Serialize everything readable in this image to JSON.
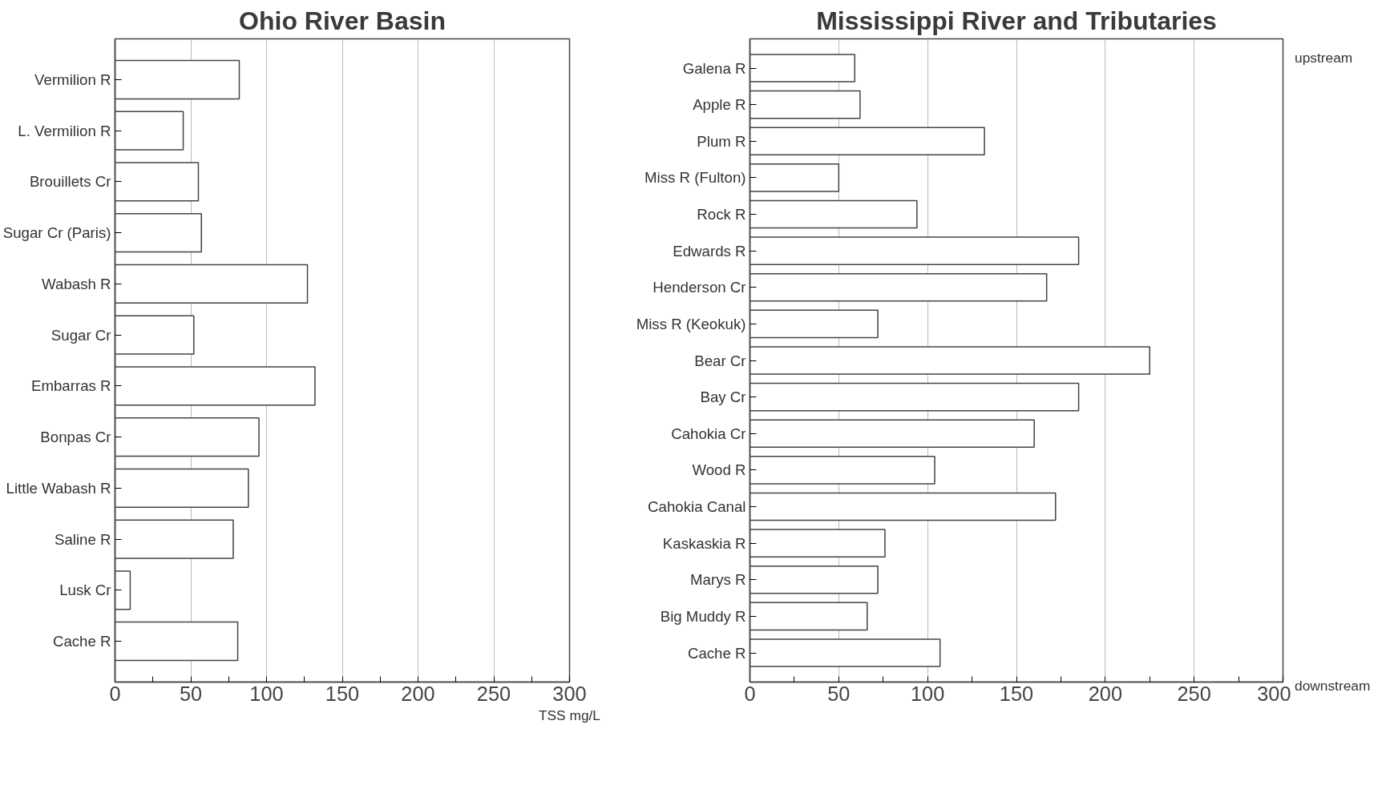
{
  "chart_data": [
    {
      "type": "bar",
      "orientation": "horizontal",
      "title": "Ohio River Basin",
      "xlabel": "TSS mg/L",
      "categories": [
        "Vermilion R",
        "L. Vermilion R",
        "Brouillets Cr",
        "Sugar Cr (Paris)",
        "Wabash R",
        "Sugar Cr",
        "Embarras R",
        "Bonpas Cr",
        "Little Wabash R",
        "Saline R",
        "Lusk Cr",
        "Cache R"
      ],
      "values": [
        82,
        45,
        55,
        57,
        127,
        52,
        132,
        95,
        88,
        78,
        10,
        81
      ],
      "color": "#ffffff",
      "xlim": [
        0,
        300
      ],
      "xticks": [
        0,
        50,
        100,
        150,
        200,
        250,
        300
      ],
      "grid": "x"
    },
    {
      "type": "bar",
      "orientation": "horizontal",
      "title": "Mississippi River and Tributaries",
      "categories": [
        "Galena R",
        "Apple R",
        "Plum R",
        "Miss R (Fulton)",
        "Rock R",
        "Edwards R",
        "Henderson Cr",
        "Miss R (Keokuk)",
        "Bear Cr",
        "Bay Cr",
        "Cahokia Cr",
        "Wood R",
        "Cahokia Canal",
        "Kaskaskia R",
        "Marys R",
        "Big Muddy R",
        "Cache R"
      ],
      "values": [
        59,
        62,
        132,
        50,
        94,
        185,
        167,
        72,
        225,
        185,
        160,
        104,
        172,
        76,
        72,
        66,
        107
      ],
      "color": "#ffffff",
      "xlim": [
        0,
        300
      ],
      "xticks": [
        0,
        50,
        100,
        150,
        200,
        250,
        300
      ],
      "grid": "x",
      "annotations": [
        "upstream",
        "downstream"
      ]
    }
  ]
}
